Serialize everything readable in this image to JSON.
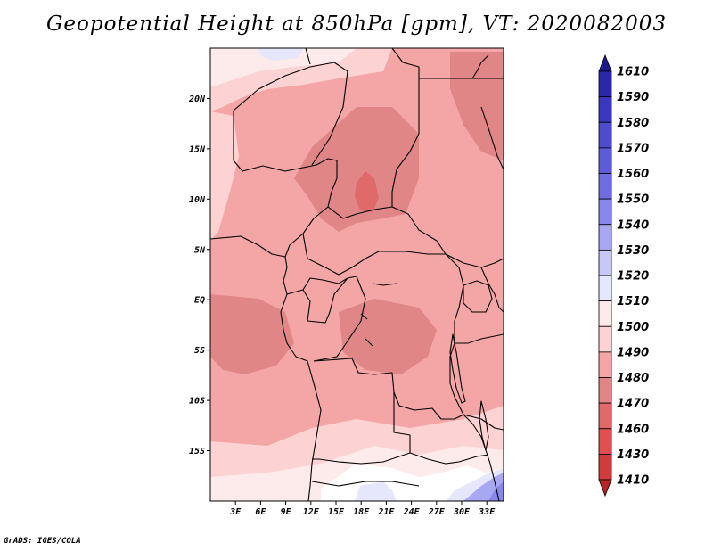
{
  "title": "Geopotential Height at 850hPa [gpm], VT: 2020082003",
  "footer": "GrADS: IGES/COLA",
  "map": {
    "lon_range": [
      0,
      35
    ],
    "lat_range": [
      -20,
      25
    ],
    "lat_ticks": [
      {
        "value": 20,
        "label": "20N"
      },
      {
        "value": 15,
        "label": "15N"
      },
      {
        "value": 10,
        "label": "10N"
      },
      {
        "value": 5,
        "label": "5N"
      },
      {
        "value": 0,
        "label": "EQ"
      },
      {
        "value": -5,
        "label": "5S"
      },
      {
        "value": -10,
        "label": "10S"
      },
      {
        "value": -15,
        "label": "15S"
      }
    ],
    "lon_ticks": [
      {
        "value": 3,
        "label": "3E"
      },
      {
        "value": 6,
        "label": "6E"
      },
      {
        "value": 9,
        "label": "9E"
      },
      {
        "value": 12,
        "label": "12E"
      },
      {
        "value": 15,
        "label": "15E"
      },
      {
        "value": 18,
        "label": "18E"
      },
      {
        "value": 21,
        "label": "21E"
      },
      {
        "value": 24,
        "label": "24E"
      },
      {
        "value": 27,
        "label": "27E"
      },
      {
        "value": 30,
        "label": "30E"
      },
      {
        "value": 33,
        "label": "33E"
      }
    ]
  },
  "colorbar": {
    "levels": [
      "1610",
      "1590",
      "1580",
      "1570",
      "1560",
      "1550",
      "1540",
      "1530",
      "1520",
      "1510",
      "1500",
      "1490",
      "1480",
      "1470",
      "1460",
      "1430",
      "1410"
    ],
    "colors": [
      "#1e1890",
      "#2a28a8",
      "#3a38be",
      "#4c4ccc",
      "#5c5cd8",
      "#6e6ee2",
      "#8888ec",
      "#a8a8f2",
      "#c8c8f8",
      "#e6e6fc",
      "#fdeaea",
      "#fcd2d2",
      "#f4a6a6",
      "#e08686",
      "#e06a6a",
      "#e05050",
      "#d03c3c",
      "#b82424"
    ]
  }
}
